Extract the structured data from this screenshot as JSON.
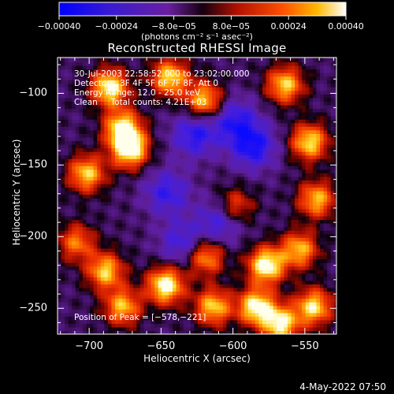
{
  "chart_data": {
    "type": "heatmap",
    "title": "Reconstructed RHESSI Image",
    "xlabel": "Heliocentric X (arcsec)",
    "ylabel": "Heliocentric Y (arcsec)",
    "xlim": [
      -722,
      -528
    ],
    "ylim": [
      -268,
      -75
    ],
    "xticks": [
      -700,
      -650,
      -600,
      -550
    ],
    "xtick_labels": [
      "−700",
      "−650",
      "−600",
      "−550"
    ],
    "yticks": [
      -100,
      -150,
      -200,
      -250
    ],
    "ytick_labels": [
      "−100",
      "−150",
      "−200",
      "−250"
    ],
    "colorbar": {
      "min": -0.0004,
      "max": 0.0004,
      "ticks": [
        -0.0004,
        -0.00024,
        -8e-05,
        8e-05,
        0.00024,
        0.0004
      ],
      "tick_labels": [
        "−0.00040",
        "−0.00024",
        "−8.0e−05",
        "8.0e−05",
        "0.00024",
        "0.00040"
      ],
      "units": "(photons cm⁻² s⁻¹ asec⁻²)"
    },
    "annotations": {
      "time_range": "30-Jul-2003 22:58:52.000 to 23:02:00.000",
      "detectors": "Detectors: 3F 4F 5F 6F 7F 8F, Att 0",
      "energy_range": "Energy Range: 12.0 - 25.0 keV",
      "clean": "Clean     Total counts: 4.21E+03",
      "peak": "Position of Peak = [−578,−221]"
    },
    "peak_position": [
      -578,
      -221
    ],
    "hotspots": [
      {
        "x": -687,
        "y": -97,
        "level": 0.95
      },
      {
        "x": -673,
        "y": -140,
        "level": 1.0
      },
      {
        "x": -678,
        "y": -125,
        "level": 0.9
      },
      {
        "x": -703,
        "y": -157,
        "level": 0.8
      },
      {
        "x": -645,
        "y": -90,
        "level": 0.85
      },
      {
        "x": -621,
        "y": -106,
        "level": 0.8
      },
      {
        "x": -565,
        "y": -95,
        "level": 0.8
      },
      {
        "x": -548,
        "y": -135,
        "level": 0.85
      },
      {
        "x": -543,
        "y": -175,
        "level": 0.75
      },
      {
        "x": -555,
        "y": -210,
        "level": 0.75
      },
      {
        "x": -578,
        "y": -221,
        "level": 1.0
      },
      {
        "x": -585,
        "y": -250,
        "level": 0.95
      },
      {
        "x": -568,
        "y": -262,
        "level": 0.9
      },
      {
        "x": -545,
        "y": -250,
        "level": 0.85
      },
      {
        "x": -648,
        "y": -235,
        "level": 1.0
      },
      {
        "x": -690,
        "y": -225,
        "level": 0.8
      },
      {
        "x": -678,
        "y": -250,
        "level": 0.75
      },
      {
        "x": -615,
        "y": -250,
        "level": 0.8
      },
      {
        "x": -620,
        "y": -215,
        "level": 0.7
      },
      {
        "x": -600,
        "y": -180,
        "level": 0.55
      },
      {
        "x": -710,
        "y": -205,
        "level": 0.6
      }
    ],
    "coldspots": [
      {
        "x": -628,
        "y": -130,
        "level": 0.9
      },
      {
        "x": -587,
        "y": -138,
        "level": 1.0
      },
      {
        "x": -647,
        "y": -170,
        "level": 0.8
      },
      {
        "x": -610,
        "y": -190,
        "level": 0.8
      },
      {
        "x": -600,
        "y": -120,
        "level": 0.85
      },
      {
        "x": -637,
        "y": -205,
        "level": 0.7
      }
    ],
    "grid": false
  },
  "footer": {
    "datestamp": "4-May-2022 07:50"
  }
}
